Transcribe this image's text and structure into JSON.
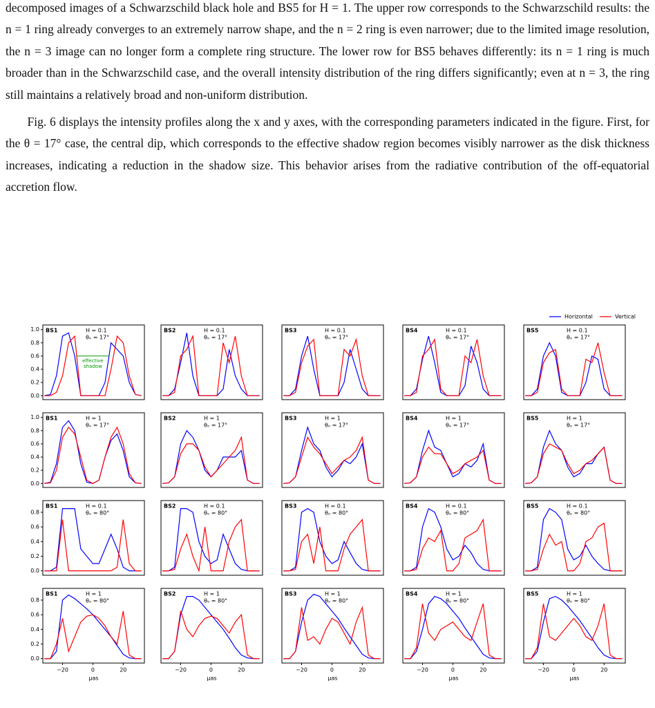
{
  "text": {
    "paragraphs": [
      "decomposed images of a Schwarzschild black hole and BS5 for H = 1. The upper row corresponds to the Schwarzschild results: the n = 1 ring already converges to an extremely narrow shape, and the n = 2 ring is even narrower; due to the limited image resolution, the n = 3 image can no longer form a complete ring structure. The lower row for BS5 behaves differently: its n = 1 ring is much broader than in the Schwarzschild case, and the overall intensity distribution of the ring differs significantly; even at n = 3, the ring still maintains a relatively broad and non-uniform distribution.",
      "Fig. 6 displays the intensity profiles along the x and y axes, with the corresponding parameters indicated in the figure. First, for the θ = 17° case, the central dip, which corresponds to the effective shadow region becomes visibly narrower as the disk thickness increases, indicating a reduction in the shadow size. This behavior arises from the radiative contribution of the off-equatorial accretion flow."
    ]
  },
  "figure": {
    "legend": [
      {
        "name": "Horizontal",
        "color": "#0000ff"
      },
      {
        "name": "Vertical",
        "color": "#ff0000"
      }
    ],
    "x": [
      -32,
      -28,
      -24,
      -20,
      -16,
      -12,
      -8,
      -4,
      0,
      4,
      8,
      12,
      16,
      20,
      24,
      28,
      32
    ],
    "xlim": [
      -33,
      34
    ],
    "xticks": [
      {
        "value": -20,
        "label": "−20"
      },
      0,
      20
    ],
    "xlabel": "μas",
    "annotation": [
      "effective",
      "shadow"
    ],
    "rows": [
      {
        "H": "H = 0.1",
        "theta": "θₒ = 17°",
        "ylim": [
          -0.06,
          1.07
        ],
        "yticks": [
          {
            "value": 0,
            "label": "0.0"
          },
          0.2,
          0.4,
          0.6,
          0.8,
          {
            "value": 1,
            "label": "1.0"
          }
        ],
        "panels": [
          {
            "label": "BS1",
            "horizontal": [
              0,
              0.02,
              0.3,
              0.9,
              0.95,
              0.6,
              0,
              0,
              0,
              0,
              0.2,
              0.8,
              0.7,
              0.6,
              0.2,
              0.02,
              0
            ],
            "vertical": [
              0,
              0,
              0.05,
              0.3,
              0.8,
              0.9,
              0,
              0,
              0,
              0,
              0,
              0.4,
              0.9,
              0.8,
              0.3,
              0.02,
              0
            ]
          },
          {
            "label": "BS2",
            "horizontal": [
              0,
              0,
              0.1,
              0.5,
              0.95,
              0.3,
              0,
              0,
              0,
              0,
              0.1,
              0.7,
              0.3,
              0.1,
              0,
              0,
              0
            ],
            "vertical": [
              0,
              0,
              0.05,
              0.6,
              0.7,
              0.9,
              0,
              0,
              0,
              0,
              0.8,
              0.5,
              0.9,
              0.3,
              0,
              0,
              0
            ]
          },
          {
            "label": "BS3",
            "horizontal": [
              0,
              0,
              0.1,
              0.6,
              0.9,
              0.4,
              0,
              0,
              0,
              0,
              0.2,
              0.7,
              0.4,
              0.1,
              0,
              0,
              0
            ],
            "vertical": [
              0,
              0,
              0.05,
              0.5,
              0.75,
              0.85,
              0,
              0,
              0,
              0,
              0.7,
              0.6,
              0.85,
              0.3,
              0,
              0,
              0
            ]
          },
          {
            "label": "BS4",
            "horizontal": [
              0,
              0,
              0.1,
              0.55,
              0.9,
              0.5,
              0.05,
              0,
              0,
              0,
              0.15,
              0.75,
              0.5,
              0.1,
              0,
              0,
              0
            ],
            "vertical": [
              0,
              0,
              0.05,
              0.6,
              0.7,
              0.85,
              0.1,
              0,
              0,
              0,
              0.6,
              0.5,
              0.85,
              0.3,
              0,
              0,
              0
            ]
          },
          {
            "label": "BS5",
            "horizontal": [
              0,
              0,
              0.1,
              0.6,
              0.8,
              0.6,
              0.05,
              0,
              0,
              0,
              0.2,
              0.6,
              0.55,
              0.1,
              0,
              0,
              0
            ],
            "vertical": [
              0,
              0,
              0.05,
              0.5,
              0.65,
              0.7,
              0.1,
              0,
              0,
              0,
              0.55,
              0.5,
              0.8,
              0.35,
              0,
              0,
              0
            ]
          }
        ]
      },
      {
        "H": "H = 1",
        "theta": "θₒ = 17°",
        "ylim": [
          -0.06,
          1.07
        ],
        "yticks": [
          {
            "value": 0,
            "label": "0.0"
          },
          0.2,
          0.4,
          0.6,
          0.8,
          {
            "value": 1,
            "label": "1.0"
          }
        ],
        "panels": [
          {
            "label": "BS1",
            "horizontal": [
              0,
              0.02,
              0.3,
              0.85,
              0.95,
              0.8,
              0.3,
              0.02,
              0,
              0.05,
              0.4,
              0.65,
              0.75,
              0.5,
              0.1,
              0.01,
              0
            ],
            "vertical": [
              0,
              0.01,
              0.2,
              0.7,
              0.85,
              0.75,
              0.4,
              0.05,
              0,
              0.05,
              0.4,
              0.7,
              0.85,
              0.6,
              0.15,
              0.01,
              0
            ]
          },
          {
            "label": "BS2",
            "horizontal": [
              0,
              0.01,
              0.1,
              0.6,
              0.8,
              0.7,
              0.5,
              0.2,
              0.1,
              0.2,
              0.4,
              0.4,
              0.4,
              0.5,
              0.05,
              0,
              0
            ],
            "vertical": [
              0,
              0.01,
              0.1,
              0.45,
              0.6,
              0.6,
              0.5,
              0.25,
              0.1,
              0.2,
              0.3,
              0.4,
              0.5,
              0.7,
              0.05,
              0,
              0
            ]
          },
          {
            "label": "BS3",
            "horizontal": [
              0,
              0.01,
              0.1,
              0.5,
              0.85,
              0.6,
              0.5,
              0.25,
              0.1,
              0.2,
              0.35,
              0.3,
              0.4,
              0.6,
              0.05,
              0,
              0
            ],
            "vertical": [
              0,
              0.01,
              0.1,
              0.4,
              0.7,
              0.55,
              0.45,
              0.3,
              0.15,
              0.25,
              0.35,
              0.4,
              0.5,
              0.7,
              0.05,
              0,
              0
            ]
          },
          {
            "label": "BS4",
            "horizontal": [
              0,
              0.01,
              0.1,
              0.5,
              0.8,
              0.55,
              0.5,
              0.3,
              0.1,
              0.15,
              0.3,
              0.25,
              0.35,
              0.6,
              0.05,
              0,
              0
            ],
            "vertical": [
              0,
              0.01,
              0.1,
              0.4,
              0.55,
              0.45,
              0.45,
              0.3,
              0.15,
              0.2,
              0.3,
              0.35,
              0.4,
              0.5,
              0.05,
              0,
              0
            ]
          },
          {
            "label": "BS5",
            "horizontal": [
              0,
              0.01,
              0.1,
              0.55,
              0.8,
              0.6,
              0.5,
              0.25,
              0.1,
              0.15,
              0.3,
              0.3,
              0.45,
              0.55,
              0.05,
              0,
              0
            ],
            "vertical": [
              0,
              0.01,
              0.1,
              0.45,
              0.6,
              0.55,
              0.5,
              0.3,
              0.15,
              0.2,
              0.3,
              0.35,
              0.45,
              0.55,
              0.05,
              0,
              0
            ]
          }
        ]
      },
      {
        "H": "H = 0.1",
        "theta": "θₒ = 80°",
        "ylim": [
          -0.06,
          0.96
        ],
        "yticks": [
          {
            "value": 0,
            "label": "0.0"
          },
          0.2,
          0.4,
          0.6,
          0.8
        ],
        "panels": [
          {
            "label": "BS1",
            "horizontal": [
              0,
              0,
              0.05,
              0.85,
              0.85,
              0.85,
              0.3,
              0.2,
              0.1,
              0.1,
              0.3,
              0.5,
              0.3,
              0.05,
              0,
              0,
              0
            ],
            "vertical": [
              0,
              0,
              0,
              0.7,
              0,
              0,
              0,
              0,
              0,
              0,
              0,
              0,
              0.05,
              0.7,
              0.1,
              0,
              0
            ]
          },
          {
            "label": "BS2",
            "horizontal": [
              0,
              0,
              0.05,
              0.85,
              0.85,
              0.8,
              0.4,
              0.2,
              0.1,
              0.15,
              0.5,
              0.3,
              0.1,
              0.02,
              0,
              0,
              0
            ],
            "vertical": [
              0,
              0,
              0.02,
              0.3,
              0.5,
              0.2,
              0,
              0.6,
              0,
              0,
              0,
              0.4,
              0.6,
              0.7,
              0,
              0,
              0
            ]
          },
          {
            "label": "BS3",
            "horizontal": [
              0,
              0,
              0.05,
              0.8,
              0.85,
              0.8,
              0.4,
              0.2,
              0.1,
              0.15,
              0.4,
              0.25,
              0.1,
              0.02,
              0,
              0,
              0
            ],
            "vertical": [
              0,
              0,
              0.02,
              0.4,
              0.5,
              0.1,
              0.6,
              0,
              0,
              0,
              0.3,
              0.5,
              0.6,
              0.7,
              0,
              0,
              0
            ]
          },
          {
            "label": "BS4",
            "horizontal": [
              0,
              0,
              0.05,
              0.6,
              0.85,
              0.8,
              0.6,
              0.3,
              0.15,
              0.2,
              0.35,
              0.25,
              0.1,
              0.02,
              0,
              0,
              0
            ],
            "vertical": [
              0,
              0,
              0.02,
              0.3,
              0.45,
              0.4,
              0.55,
              0,
              0,
              0.1,
              0.45,
              0.5,
              0.55,
              0.7,
              0,
              0,
              0
            ]
          },
          {
            "label": "BS5",
            "horizontal": [
              0,
              0,
              0.05,
              0.7,
              0.85,
              0.8,
              0.7,
              0.3,
              0.15,
              0.2,
              0.35,
              0.2,
              0.1,
              0.02,
              0,
              0,
              0
            ],
            "vertical": [
              0,
              0,
              0.02,
              0.3,
              0.5,
              0.35,
              0.4,
              0,
              0,
              0.1,
              0.4,
              0.45,
              0.6,
              0.65,
              0,
              0,
              0
            ]
          }
        ]
      },
      {
        "H": "H = 1",
        "theta": "θₒ = 80°",
        "ylim": [
          -0.06,
          0.96
        ],
        "yticks": [
          {
            "value": 0,
            "label": "0.0"
          },
          0.2,
          0.4,
          0.6,
          0.8
        ],
        "panels": [
          {
            "label": "BS1",
            "horizontal": [
              0,
              0,
              0.1,
              0.8,
              0.87,
              0.82,
              0.75,
              0.68,
              0.6,
              0.5,
              0.4,
              0.3,
              0.18,
              0.06,
              0.01,
              0,
              0
            ],
            "vertical": [
              0,
              0,
              0.2,
              0.55,
              0.1,
              0.3,
              0.5,
              0.58,
              0.6,
              0.55,
              0.45,
              0.3,
              0.2,
              0.65,
              0.05,
              0,
              0
            ]
          },
          {
            "label": "BS2",
            "horizontal": [
              0,
              0,
              0.1,
              0.6,
              0.85,
              0.85,
              0.8,
              0.7,
              0.6,
              0.5,
              0.4,
              0.28,
              0.15,
              0.05,
              0.01,
              0,
              0
            ],
            "vertical": [
              0,
              0,
              0.1,
              0.65,
              0.4,
              0.3,
              0.45,
              0.55,
              0.58,
              0.55,
              0.45,
              0.35,
              0.5,
              0.6,
              0.05,
              0,
              0
            ]
          },
          {
            "label": "BS3",
            "horizontal": [
              0,
              0,
              0.1,
              0.5,
              0.8,
              0.88,
              0.85,
              0.75,
              0.65,
              0.55,
              0.42,
              0.3,
              0.18,
              0.06,
              0.01,
              0,
              0
            ],
            "vertical": [
              0,
              0,
              0.1,
              0.7,
              0.25,
              0.3,
              0.2,
              0.4,
              0.55,
              0.5,
              0.35,
              0.2,
              0.5,
              0.7,
              0.05,
              0,
              0
            ]
          },
          {
            "label": "BS4",
            "horizontal": [
              0,
              0,
              0.1,
              0.4,
              0.75,
              0.85,
              0.82,
              0.75,
              0.65,
              0.55,
              0.42,
              0.3,
              0.18,
              0.06,
              0.01,
              0,
              0
            ],
            "vertical": [
              0,
              0,
              0.15,
              0.75,
              0.35,
              0.25,
              0.4,
              0.45,
              0.5,
              0.4,
              0.3,
              0.25,
              0.5,
              0.75,
              0.05,
              0,
              0
            ]
          },
          {
            "label": "BS5",
            "horizontal": [
              0,
              0,
              0.1,
              0.5,
              0.82,
              0.85,
              0.8,
              0.72,
              0.62,
              0.52,
              0.4,
              0.28,
              0.15,
              0.05,
              0.01,
              0,
              0
            ],
            "vertical": [
              0,
              0,
              0.15,
              0.75,
              0.3,
              0.25,
              0.35,
              0.45,
              0.55,
              0.45,
              0.3,
              0.25,
              0.45,
              0.75,
              0.05,
              0,
              0
            ]
          }
        ]
      }
    ]
  }
}
